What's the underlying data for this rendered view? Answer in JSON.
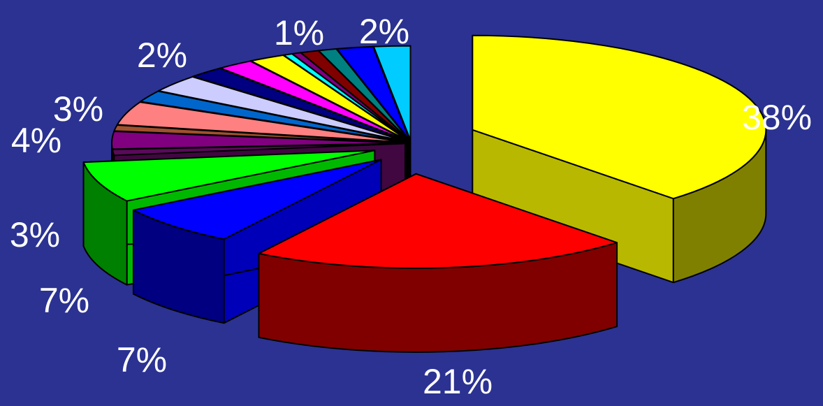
{
  "chart_data": {
    "type": "pie",
    "style": "3d-exploded",
    "title": "",
    "legend": "none",
    "slices": [
      {
        "value": 38,
        "label": "38%",
        "color": "#ffff00"
      },
      {
        "value": 21,
        "label": "21%",
        "color": "#ff0000"
      },
      {
        "value": 7,
        "label": "7%",
        "color": "#0000ff"
      },
      {
        "value": 7,
        "label": "7%",
        "color": "#00ff00"
      },
      {
        "value": 1,
        "label": "",
        "color": "#5a0a5a"
      },
      {
        "value": 3,
        "label": "3%",
        "color": "#800080"
      },
      {
        "value": 1,
        "label": "",
        "color": "#a0522d"
      },
      {
        "value": 4,
        "label": "4%",
        "color": "#ff8080"
      },
      {
        "value": 2,
        "label": "",
        "color": "#0066cc"
      },
      {
        "value": 3,
        "label": "3%",
        "color": "#ccccff"
      },
      {
        "value": 2,
        "label": "",
        "color": "#000080"
      },
      {
        "value": 2,
        "label": "2%",
        "color": "#ff00ff"
      },
      {
        "value": 2,
        "label": "",
        "color": "#ffff00"
      },
      {
        "value": 0.5,
        "label": "",
        "color": "#00ffff"
      },
      {
        "value": 0.5,
        "label": "",
        "color": "#800080"
      },
      {
        "value": 1,
        "label": "1%",
        "color": "#800000"
      },
      {
        "value": 1,
        "label": "",
        "color": "#008080"
      },
      {
        "value": 2,
        "label": "",
        "color": "#0000ff"
      },
      {
        "value": 2,
        "label": "2%",
        "color": "#00ccff"
      }
    ]
  }
}
